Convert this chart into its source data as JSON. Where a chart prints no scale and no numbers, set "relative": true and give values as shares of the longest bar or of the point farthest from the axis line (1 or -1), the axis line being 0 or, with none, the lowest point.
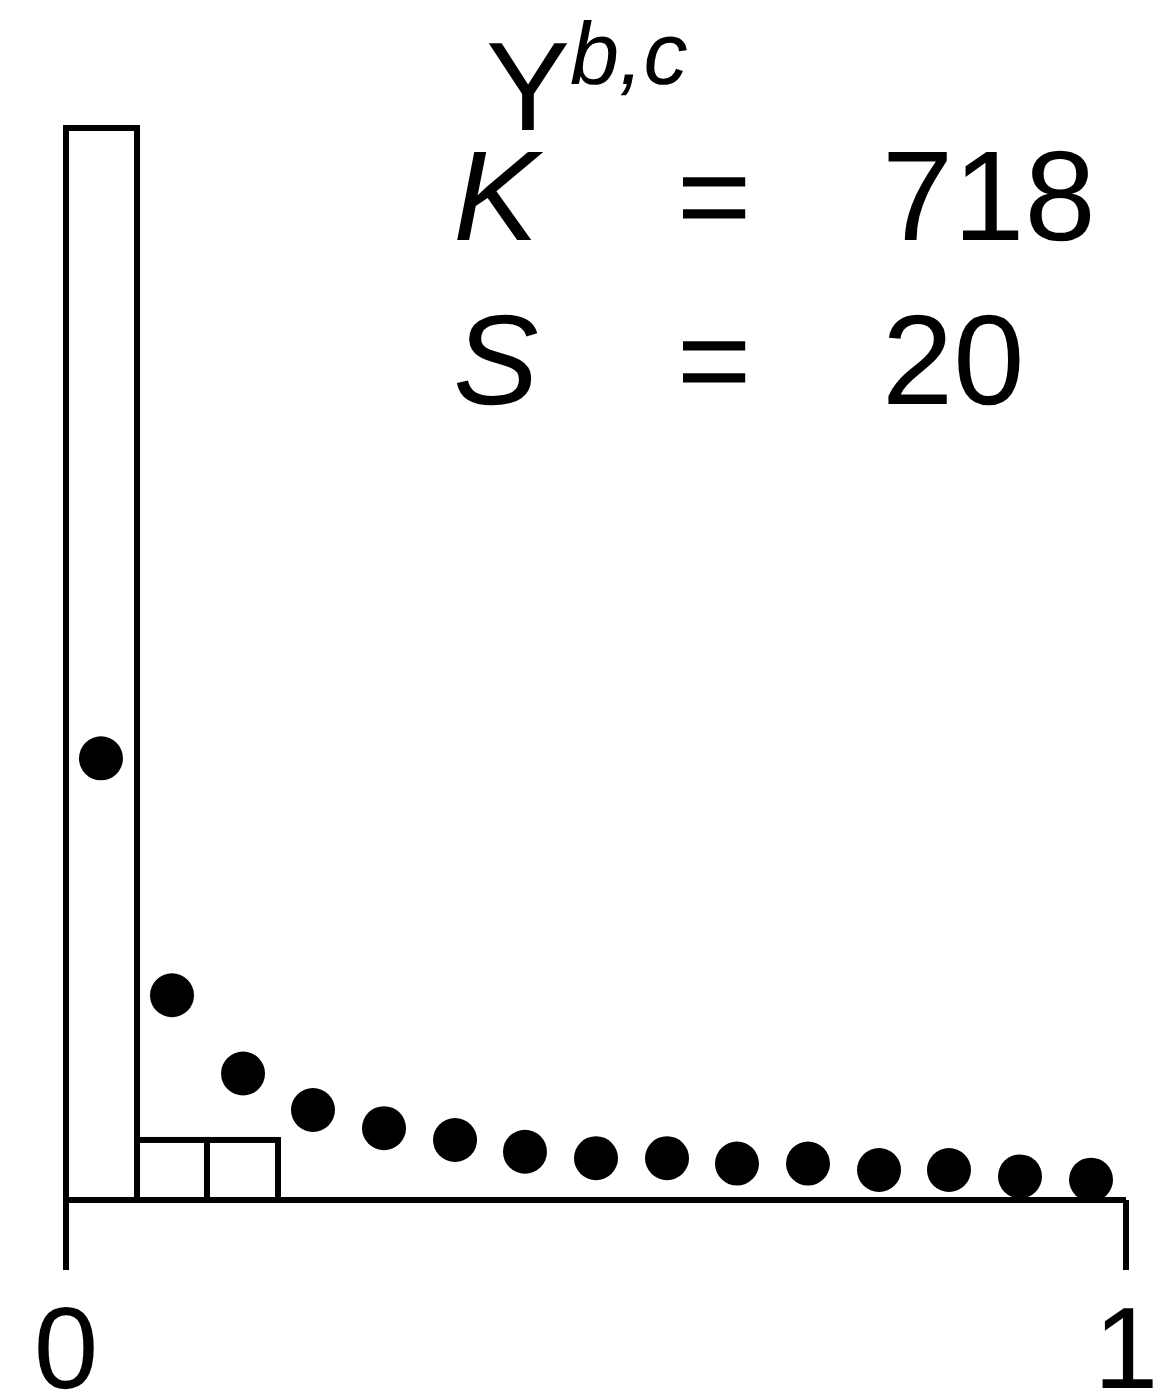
{
  "chart_data": {
    "type": "histogram",
    "title": "Y$^{b,c}$",
    "annotations": [
      "K = 718",
      "S = 20"
    ],
    "relative": true,
    "xlim": [
      0,
      1
    ],
    "xticks": [
      0,
      1
    ],
    "series": [
      {
        "type": "histogram",
        "color": "#ffffff",
        "bins": [
          0,
          0.067,
          0.133,
          0.2
        ],
        "values": [
          1,
          0.056,
          0.056
        ]
      },
      {
        "type": "scatter",
        "color": "#000000",
        "marker": "circle",
        "x": [
          0.033,
          0.1,
          0.167,
          0.233,
          0.3,
          0.367,
          0.433,
          0.5,
          0.567,
          0.633,
          0.7,
          0.767,
          0.833,
          0.9,
          0.967
        ],
        "values": [
          0.412,
          0.191,
          0.118,
          0.084,
          0.067,
          0.056,
          0.045,
          0.039,
          0.039,
          0.034,
          0.034,
          0.028,
          0.028,
          0.022,
          0.019
        ]
      }
    ]
  }
}
